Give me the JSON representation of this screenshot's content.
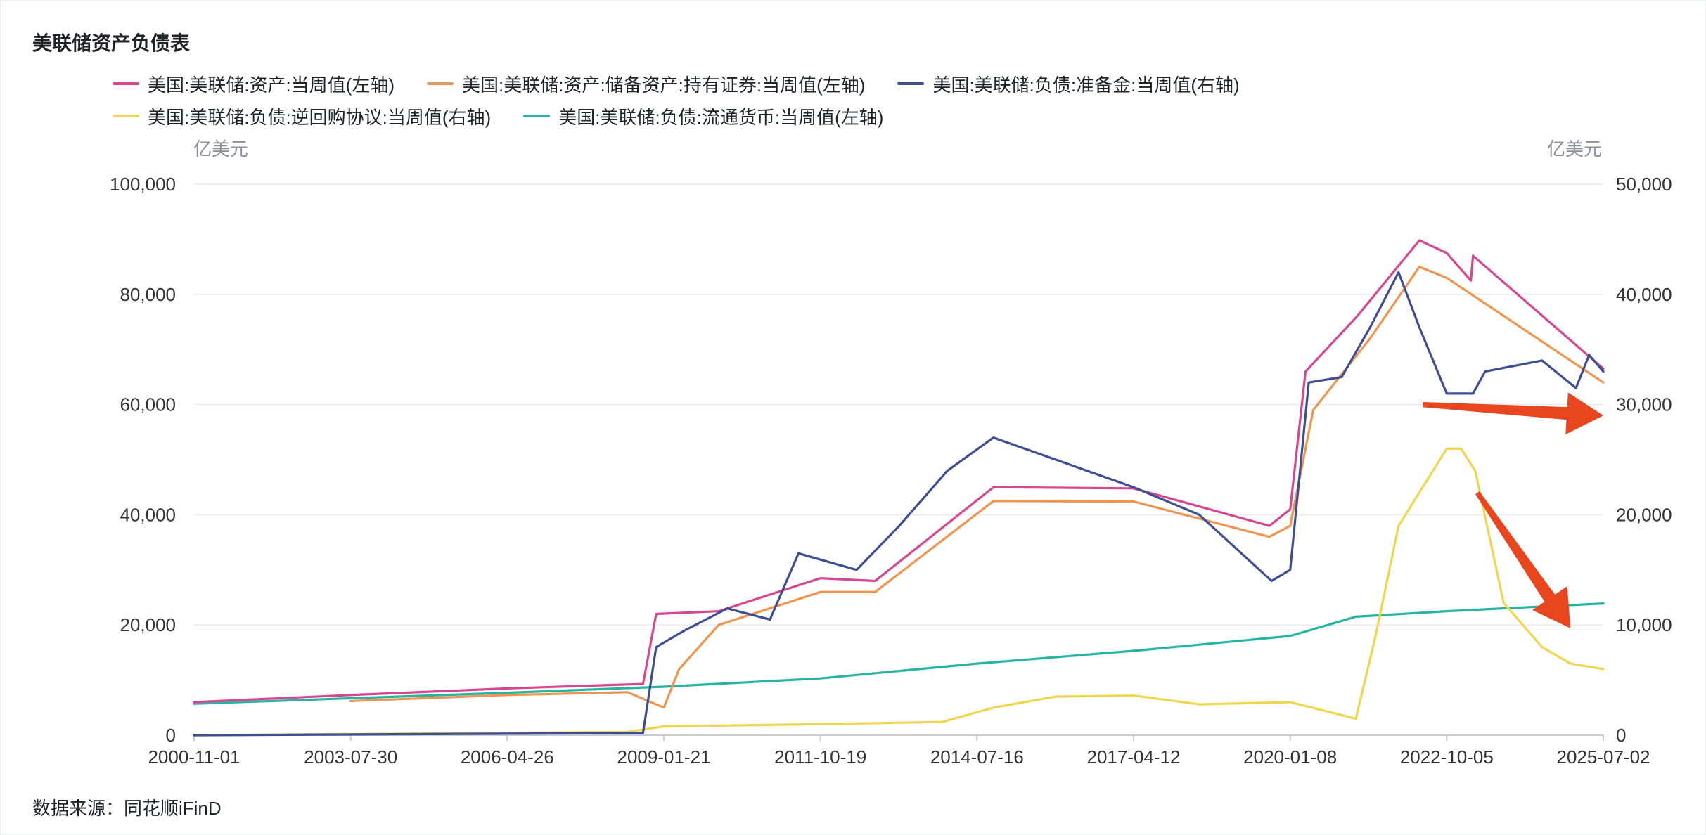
{
  "title": "美联储资产负债表",
  "unit_left": "亿美元",
  "unit_right": "亿美元",
  "source": "数据来源：同花顺iFinD",
  "chart_data": {
    "type": "line",
    "x_ticks": [
      "2000-11-01",
      "2003-07-30",
      "2006-04-26",
      "2009-01-21",
      "2011-10-19",
      "2014-07-16",
      "2017-04-12",
      "2020-01-08",
      "2022-10-05",
      "2025-07-02"
    ],
    "y_left": {
      "ticks": [
        "0",
        "20,000",
        "40,000",
        "60,000",
        "80,000",
        "100,000"
      ],
      "range": [
        0,
        100000
      ]
    },
    "y_right": {
      "ticks": [
        "0",
        "10,000",
        "20,000",
        "30,000",
        "40,000",
        "50,000"
      ],
      "range": [
        0,
        50000
      ]
    },
    "grid": true,
    "legend_position": "top",
    "series": [
      {
        "name": "美国:美联储:资产:当周值(左轴)",
        "axis": "left",
        "color": "#d6478f",
        "points": [
          [
            "2000-11-01",
            6000
          ],
          [
            "2003-07-30",
            7300
          ],
          [
            "2006-04-26",
            8500
          ],
          [
            "2008-09-10",
            9300
          ],
          [
            "2008-12-03",
            22000
          ],
          [
            "2010-01-06",
            22500
          ],
          [
            "2011-10-19",
            28500
          ],
          [
            "2012-10-03",
            28000
          ],
          [
            "2014-10-29",
            45000
          ],
          [
            "2017-04-12",
            44800
          ],
          [
            "2019-08-28",
            38000
          ],
          [
            "2020-01-08",
            41000
          ],
          [
            "2020-04-15",
            66000
          ],
          [
            "2021-03-10",
            76000
          ],
          [
            "2022-04-13",
            89800
          ],
          [
            "2022-10-05",
            87500
          ],
          [
            "2023-03-08",
            82500
          ],
          [
            "2023-03-22",
            87000
          ],
          [
            "2025-07-02",
            66500
          ]
        ]
      },
      {
        "name": "美国:美联储:资产:储备资产:持有证券:当周值(左轴)",
        "axis": "left",
        "color": "#f0954f",
        "points": [
          [
            "2003-07-30",
            6200
          ],
          [
            "2006-04-26",
            7300
          ],
          [
            "2008-06-04",
            7800
          ],
          [
            "2008-09-10",
            6600
          ],
          [
            "2009-01-21",
            5000
          ],
          [
            "2009-04-29",
            12000
          ],
          [
            "2010-01-06",
            20000
          ],
          [
            "2011-10-19",
            26000
          ],
          [
            "2012-10-03",
            26000
          ],
          [
            "2014-10-29",
            42500
          ],
          [
            "2017-04-12",
            42400
          ],
          [
            "2019-08-28",
            36000
          ],
          [
            "2020-01-08",
            38000
          ],
          [
            "2020-06-03",
            59000
          ],
          [
            "2021-06-02",
            72000
          ],
          [
            "2022-04-13",
            85000
          ],
          [
            "2022-10-05",
            83000
          ],
          [
            "2025-07-02",
            64000
          ]
        ]
      },
      {
        "name": "美国:美联储:负债:准备金:当周值(右轴)",
        "axis": "right",
        "color": "#3e4e93",
        "points": [
          [
            "2000-11-01",
            0
          ],
          [
            "2008-09-10",
            200
          ],
          [
            "2008-12-03",
            8000
          ],
          [
            "2009-06-03",
            9500
          ],
          [
            "2010-03-03",
            11500
          ],
          [
            "2010-12-01",
            10500
          ],
          [
            "2011-06-01",
            16500
          ],
          [
            "2012-06-06",
            15000
          ],
          [
            "2013-03-06",
            19000
          ],
          [
            "2014-01-08",
            24000
          ],
          [
            "2014-10-29",
            27000
          ],
          [
            "2015-12-02",
            25000
          ],
          [
            "2017-04-12",
            22500
          ],
          [
            "2018-06-06",
            20000
          ],
          [
            "2019-09-11",
            14000
          ],
          [
            "2020-01-08",
            15000
          ],
          [
            "2020-05-06",
            32000
          ],
          [
            "2020-12-02",
            32500
          ],
          [
            "2021-06-02",
            37000
          ],
          [
            "2021-12-01",
            42000
          ],
          [
            "2022-04-13",
            37000
          ],
          [
            "2022-10-05",
            31000
          ],
          [
            "2023-03-22",
            31000
          ],
          [
            "2023-06-07",
            33000
          ],
          [
            "2024-06-05",
            34000
          ],
          [
            "2025-01-08",
            31500
          ],
          [
            "2025-04-02",
            34500
          ],
          [
            "2025-07-02",
            33000
          ]
        ]
      },
      {
        "name": "美国:美联储:负债:逆回购协议:当周值(右轴)",
        "axis": "right",
        "color": "#f0d64e",
        "points": [
          [
            "2000-11-01",
            0
          ],
          [
            "2003-07-30",
            100
          ],
          [
            "2008-06-04",
            300
          ],
          [
            "2009-01-21",
            800
          ],
          [
            "2011-10-19",
            1000
          ],
          [
            "2013-12-04",
            1200
          ],
          [
            "2014-10-29",
            2500
          ],
          [
            "2015-12-02",
            3500
          ],
          [
            "2017-04-12",
            3600
          ],
          [
            "2018-06-06",
            2800
          ],
          [
            "2020-01-08",
            3000
          ],
          [
            "2021-03-03",
            1500
          ],
          [
            "2021-07-07",
            9000
          ],
          [
            "2021-12-01",
            19000
          ],
          [
            "2022-10-05",
            26000
          ],
          [
            "2023-01-04",
            26000
          ],
          [
            "2023-04-05",
            24000
          ],
          [
            "2023-10-04",
            12000
          ],
          [
            "2024-06-05",
            8000
          ],
          [
            "2024-12-04",
            6500
          ],
          [
            "2025-07-02",
            6000
          ]
        ]
      },
      {
        "name": "美国:美联储:负债:流通货币:当周值(左轴)",
        "axis": "left",
        "color": "#26b5a4",
        "points": [
          [
            "2000-11-01",
            5700
          ],
          [
            "2006-04-26",
            7700
          ],
          [
            "2009-01-21",
            8800
          ],
          [
            "2011-10-19",
            10300
          ],
          [
            "2014-07-16",
            13000
          ],
          [
            "2017-04-12",
            15300
          ],
          [
            "2020-01-08",
            18000
          ],
          [
            "2021-03-03",
            21500
          ],
          [
            "2022-10-05",
            22500
          ],
          [
            "2025-07-02",
            23900
          ]
        ]
      }
    ],
    "annotations": [
      {
        "type": "arrow",
        "color": "#e8461e",
        "from": [
          "2022-05-04",
          30000
        ],
        "to": [
          "2025-07-02",
          29000
        ],
        "axis": "right"
      },
      {
        "type": "arrow",
        "color": "#e8461e",
        "from": [
          "2023-04-19",
          22000
        ],
        "to": [
          "2024-12-04",
          9700
        ],
        "axis": "right"
      }
    ]
  }
}
